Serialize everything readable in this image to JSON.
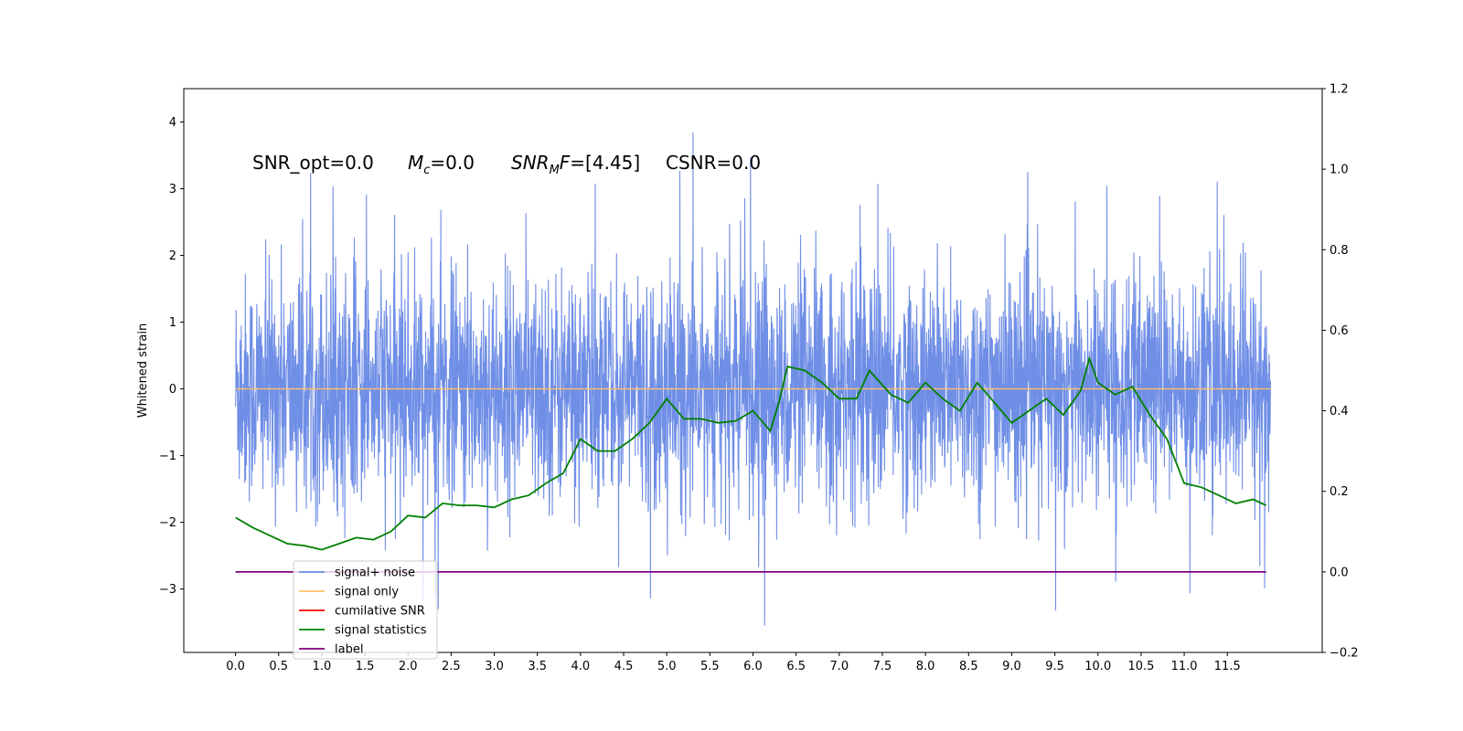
{
  "chart_data": {
    "type": "line",
    "ylabel": "Whitened strain",
    "xlim": [
      -0.6,
      12.6
    ],
    "ylim": [
      -3.95,
      4.5
    ],
    "y2lim": [
      -0.2,
      1.2
    ],
    "x_ticks": [
      "0.0",
      "0.5",
      "1.0",
      "1.5",
      "2.0",
      "2.5",
      "3.0",
      "3.5",
      "4.0",
      "4.5",
      "5.0",
      "5.5",
      "6.0",
      "6.5",
      "7.0",
      "7.5",
      "8.0",
      "8.5",
      "9.0",
      "9.5",
      "10.0",
      "10.5",
      "11.0",
      "11.5"
    ],
    "y_ticks": [
      "4",
      "3",
      "2",
      "1",
      "0",
      "−1",
      "−2",
      "−3"
    ],
    "y2_ticks": [
      "1.2",
      "1.0",
      "0.8",
      "0.6",
      "0.4",
      "0.2",
      "0.0",
      "−0.2"
    ],
    "annotations": {
      "snr_opt": "SNR_opt=0.0",
      "mc_symbol": "M",
      "mc_sub": "c",
      "mc_value": "=0.0",
      "snr_mf_symbol": "SNR",
      "snr_mf_sub": "M",
      "snr_mf_f": "F",
      "snr_mf_value": "=[4.45]",
      "csnr": "CSNR=0.0"
    },
    "series": [
      {
        "name": "signal+ noise",
        "color": "#6f8ee6",
        "axis": "left",
        "noise_band": [
          -1.7,
          1.8
        ],
        "t_range": [
          0.0,
          12.0
        ]
      },
      {
        "name": "signal only",
        "color": "#ffbf66",
        "axis": "left",
        "values_constant": 0.0,
        "t_range": [
          0.0,
          12.0
        ]
      },
      {
        "name": "cumilative SNR",
        "color": "#ff0000",
        "axis": "right"
      },
      {
        "name": "signal statistics",
        "color": "#008000",
        "axis": "right",
        "x": [
          0.0,
          0.2,
          0.4,
          0.6,
          0.8,
          1.0,
          1.2,
          1.4,
          1.6,
          1.8,
          2.0,
          2.2,
          2.4,
          2.6,
          2.8,
          3.0,
          3.2,
          3.4,
          3.6,
          3.8,
          4.0,
          4.2,
          4.4,
          4.6,
          4.8,
          5.0,
          5.2,
          5.4,
          5.6,
          5.8,
          6.0,
          6.2,
          6.3,
          6.4,
          6.6,
          6.8,
          7.0,
          7.2,
          7.35,
          7.6,
          7.8,
          8.0,
          8.2,
          8.4,
          8.6,
          8.8,
          9.0,
          9.2,
          9.4,
          9.6,
          9.8,
          9.9,
          10.0,
          10.2,
          10.4,
          10.6,
          10.8,
          11.0,
          11.2,
          11.4,
          11.6,
          11.8,
          11.95
        ],
        "y": [
          0.135,
          0.11,
          0.09,
          0.07,
          0.065,
          0.055,
          0.07,
          0.085,
          0.08,
          0.1,
          0.14,
          0.135,
          0.17,
          0.165,
          0.165,
          0.16,
          0.18,
          0.19,
          0.22,
          0.245,
          0.33,
          0.3,
          0.3,
          0.33,
          0.37,
          0.43,
          0.38,
          0.38,
          0.37,
          0.375,
          0.4,
          0.35,
          0.42,
          0.51,
          0.5,
          0.47,
          0.43,
          0.43,
          0.5,
          0.44,
          0.42,
          0.47,
          0.43,
          0.4,
          0.47,
          0.42,
          0.37,
          0.4,
          0.43,
          0.39,
          0.45,
          0.53,
          0.47,
          0.44,
          0.46,
          0.39,
          0.33,
          0.22,
          0.21,
          0.19,
          0.17,
          0.18,
          0.165
        ]
      },
      {
        "name": "label",
        "color": "#800080",
        "axis": "right",
        "values_constant": 0.0,
        "t_range": [
          0.0,
          11.95
        ]
      }
    ],
    "legend": {
      "placement": "lower-left",
      "entries": [
        {
          "label": "signal+ noise",
          "color": "#6f8ee6"
        },
        {
          "label": "signal only",
          "color": "#ffbf66"
        },
        {
          "label": "cumilative SNR",
          "color": "#ff0000"
        },
        {
          "label": "signal statistics",
          "color": "#008000"
        },
        {
          "label": "label",
          "color": "#800080"
        }
      ]
    }
  }
}
